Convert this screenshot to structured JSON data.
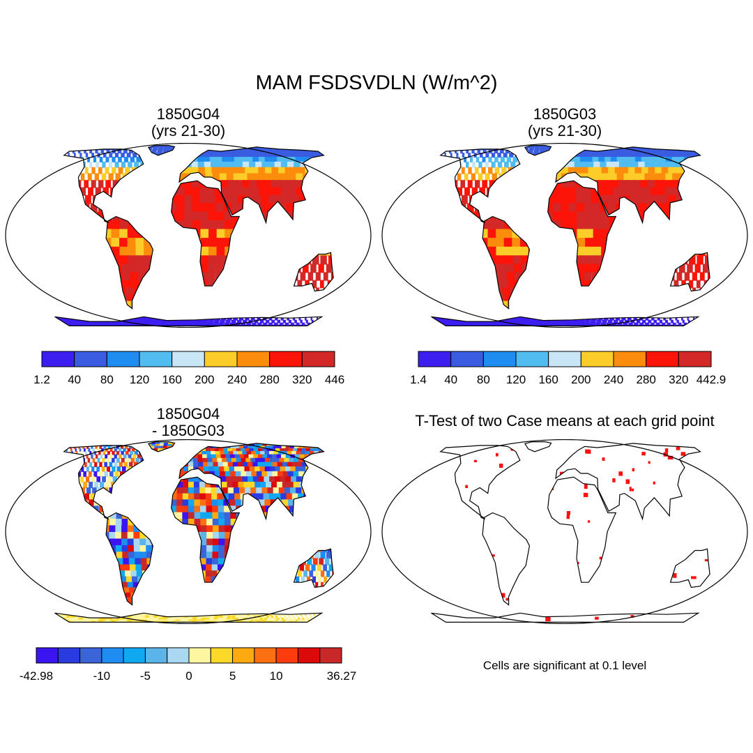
{
  "title": "MAM FSDSVDLN (W/m^2)",
  "panels": [
    {
      "id": "p1",
      "title_line1": "1850G04",
      "title_line2": "(yrs 21-30)"
    },
    {
      "id": "p2",
      "title_line1": "1850G03",
      "title_line2": "(yrs 21-30)"
    },
    {
      "id": "p3",
      "title_line1": "1850G04",
      "title_line2": "- 1850G03"
    },
    {
      "id": "p4",
      "title_line1": "T-Test of two Case means at each grid point",
      "title_line2": ""
    }
  ],
  "colorbars": {
    "cb1": {
      "colors": [
        "#3d1ef0",
        "#3a5ce0",
        "#1e8cf0",
        "#50bcf0",
        "#c8e6f6",
        "#fccc28",
        "#fc8c0c",
        "#fc1408",
        "#d22828"
      ],
      "labels": [
        "1.2",
        "40",
        "80",
        "120",
        "160",
        "200",
        "240",
        "280",
        "320",
        "446"
      ]
    },
    "cb2": {
      "colors": [
        "#3d1ef0",
        "#3a5ce0",
        "#1e8cf0",
        "#50bcf0",
        "#c8e6f6",
        "#fccc28",
        "#fc8c0c",
        "#fc1408",
        "#d22828"
      ],
      "labels": [
        "1.4",
        "40",
        "80",
        "120",
        "160",
        "200",
        "240",
        "280",
        "320",
        "442.9"
      ]
    },
    "cb3": {
      "colors": [
        "#3c14f0",
        "#2a3ce0",
        "#3a64d8",
        "#1e8cf0",
        "#10a8f0",
        "#5ab4ea",
        "#aad8f2",
        "#fef6a0",
        "#fcd828",
        "#fcaa10",
        "#fc7014",
        "#fc3c0c",
        "#dc0a0a",
        "#c82828"
      ],
      "labels": [
        "-42.98",
        "-10",
        "-5",
        "0",
        "5",
        "10",
        "36.27"
      ]
    }
  },
  "significance_note": "Cells are significant at 0.1 level"
}
